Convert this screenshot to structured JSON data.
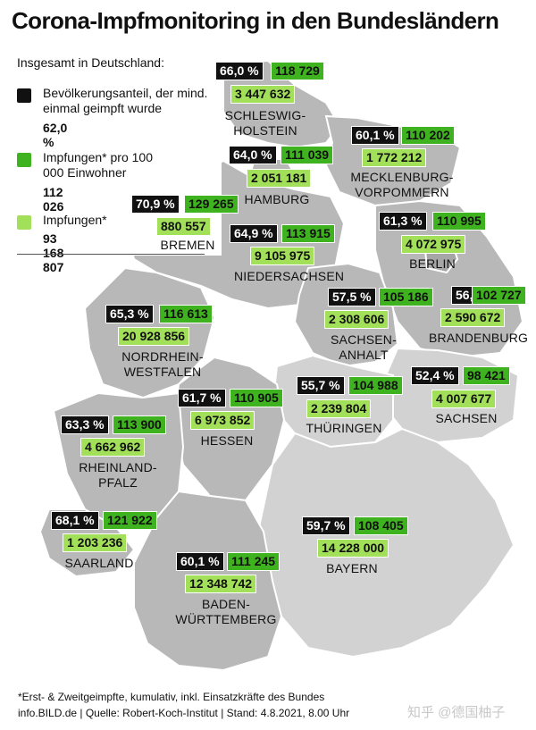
{
  "title": "Corona-Impfmonitoring in den Bundesländern",
  "legend": {
    "heading": "Insgesamt in Deutschland:",
    "items": [
      {
        "label": "Bevölkerungsanteil, der mind. einmal geimpft wurde",
        "value": "62,0 %",
        "color": "#111111"
      },
      {
        "label": "Impfungen* pro 100 000 Einwohner",
        "value": "112 026",
        "color": "#3fb31f"
      },
      {
        "label": "Impfungen*",
        "value": "93 168 807",
        "color": "#a3e05a"
      }
    ]
  },
  "states": [
    {
      "name": "SCHLESWIG-\nHOLSTEIN",
      "pct": "66,0 %",
      "per100k": "118 729",
      "total": "3 447 632"
    },
    {
      "name": "MECKLENBURG-\nVORPOMMERN",
      "pct": "60,1 %",
      "per100k": "110 202",
      "total": "1 772 212"
    },
    {
      "name": "HAMBURG",
      "pct": "64,0 %",
      "per100k": "111 039",
      "total": "2 051 181"
    },
    {
      "name": "BREMEN",
      "pct": "70,9 %",
      "per100k": "129 265",
      "total": "880 557"
    },
    {
      "name": "NIEDERSACHSEN",
      "pct": "64,9 %",
      "per100k": "113 915",
      "total": "9 105 975"
    },
    {
      "name": "BERLIN",
      "pct": "61,3 %",
      "per100k": "110 995",
      "total": "4 072 975"
    },
    {
      "name": "BRANDENBURG",
      "pct": "56,1 %",
      "per100k": "102 727",
      "total": "2 590 672"
    },
    {
      "name": "SACHSEN-\nANHALT",
      "pct": "57,5 %",
      "per100k": "105 186",
      "total": "2 308 606"
    },
    {
      "name": "NORDRHEIN-\nWESTFALEN",
      "pct": "65,3 %",
      "per100k": "116 613",
      "total": "20 928 856"
    },
    {
      "name": "SACHSEN",
      "pct": "52,4 %",
      "per100k": "98 421",
      "total": "4 007 677"
    },
    {
      "name": "THÜRINGEN",
      "pct": "55,7 %",
      "per100k": "104 988",
      "total": "2 239 804"
    },
    {
      "name": "HESSEN",
      "pct": "61,7 %",
      "per100k": "110 905",
      "total": "6 973 852"
    },
    {
      "name": "RHEINLAND-\nPFALZ",
      "pct": "63,3 %",
      "per100k": "113 900",
      "total": "4 662 962"
    },
    {
      "name": "SAARLAND",
      "pct": "68,1 %",
      "per100k": "121 922",
      "total": "1 203 236"
    },
    {
      "name": "BAYERN",
      "pct": "59,7 %",
      "per100k": "108 405",
      "total": "14 228 000"
    },
    {
      "name": "BADEN-\nWÜRTTEMBERG",
      "pct": "60,1 %",
      "per100k": "111 245",
      "total": "12 348 742"
    }
  ],
  "footnote": "*Erst- & Zweitgeimpfte, kumulativ, inkl. Einsatzkräfte des Bundes",
  "source": "info.BILD.de | Quelle: Robert-Koch-Institut | Stand: 4.8.2021, 8.00 Uhr",
  "watermark": "知乎 @德国柚子",
  "colors": {
    "pct_box": "#111111",
    "per100k_box": "#3fb31f",
    "total_box": "#a3e05a",
    "map_fill": "#b8b8b8"
  }
}
